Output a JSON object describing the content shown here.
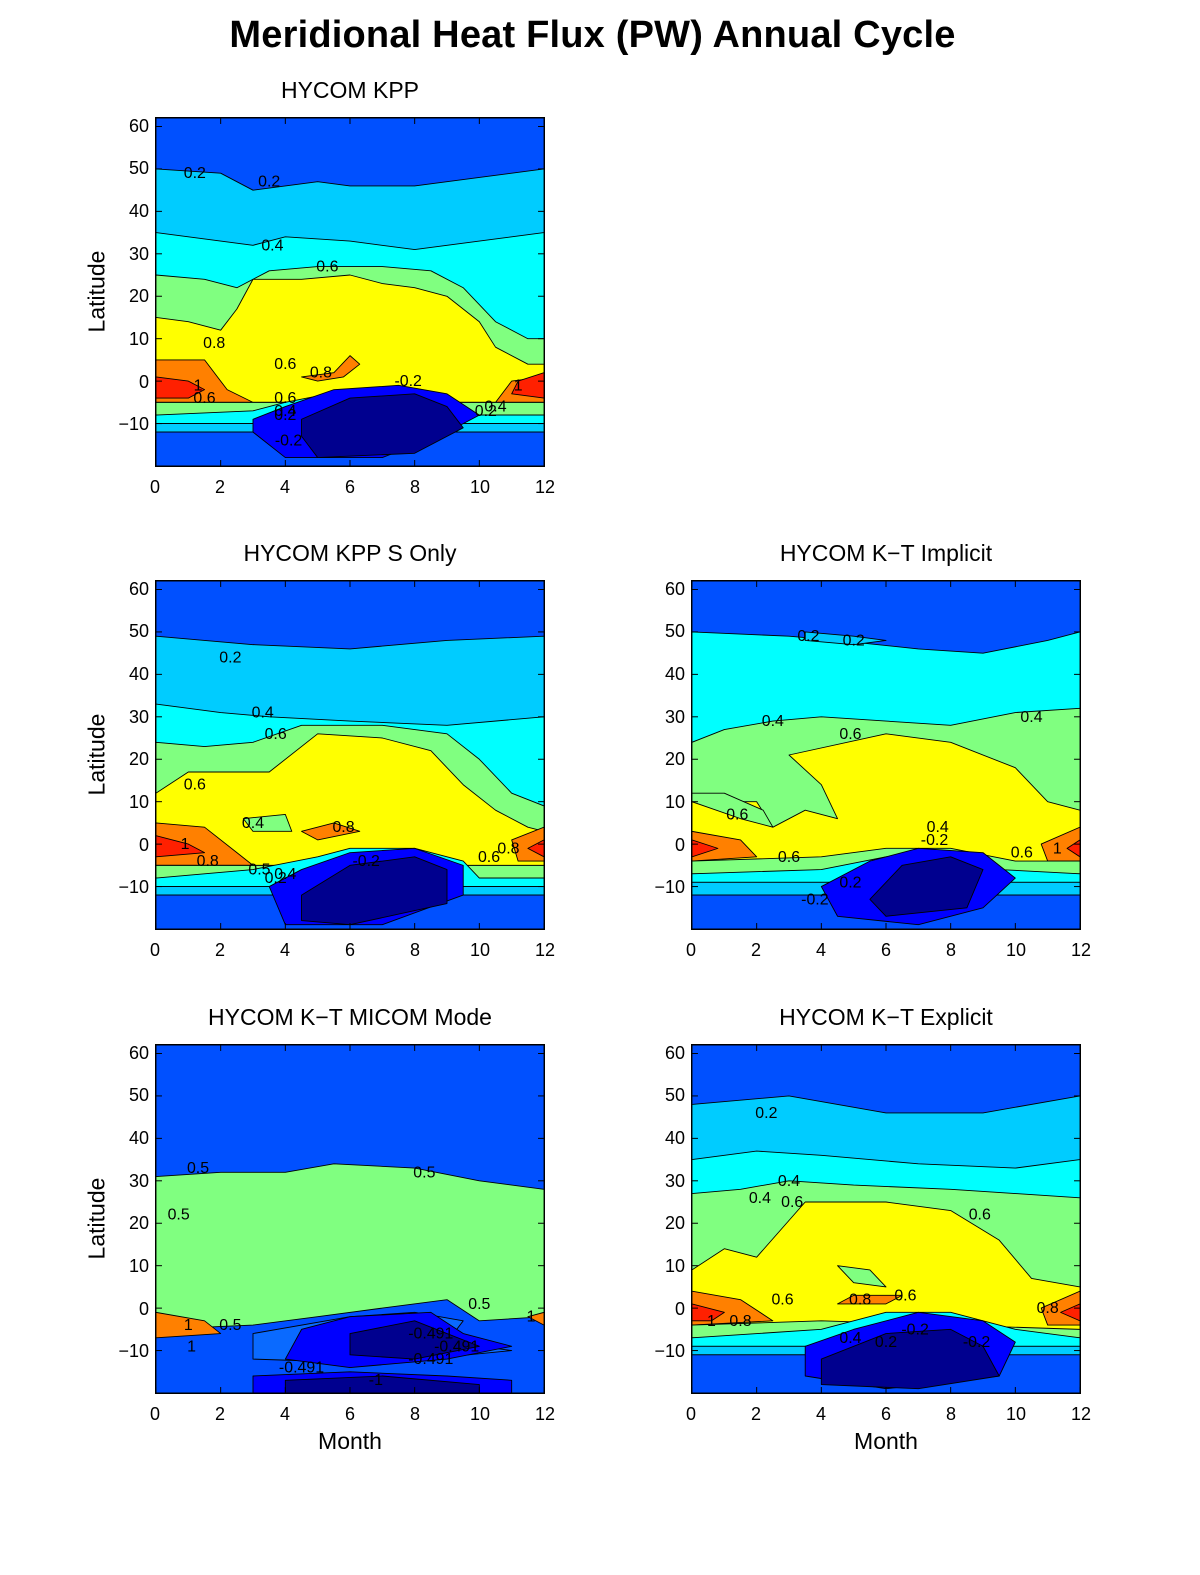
{
  "title": "Meridional Heat Flux (PW) Annual Cycle",
  "chart_data": [
    {
      "type": "contour",
      "title": "HYCOM KPP",
      "xlabel": "",
      "ylabel": "Latitude",
      "xlim": [
        0,
        12
      ],
      "ylim": [
        -20,
        62
      ],
      "xticks": [
        "0",
        "2",
        "4",
        "6",
        "8",
        "10",
        "12"
      ],
      "yticks": [
        "60",
        "50",
        "40",
        "30",
        "20",
        "10",
        "0",
        "−10"
      ],
      "contour_labels": [
        {
          "text": "0.2",
          "x": 1.2,
          "y": 49
        },
        {
          "text": "0.2",
          "x": 3.5,
          "y": 47
        },
        {
          "text": "0.4",
          "x": 3.6,
          "y": 32
        },
        {
          "text": "0.6",
          "x": 5.3,
          "y": 27
        },
        {
          "text": "0.8",
          "x": 1.8,
          "y": 9
        },
        {
          "text": "0.6",
          "x": 4.0,
          "y": 4
        },
        {
          "text": "0.8",
          "x": 5.1,
          "y": 2
        },
        {
          "text": "1",
          "x": 1.3,
          "y": -1
        },
        {
          "text": "0.6",
          "x": 1.5,
          "y": -4
        },
        {
          "text": "0.6",
          "x": 4.0,
          "y": -4
        },
        {
          "text": "0.4",
          "x": 4.0,
          "y": -7
        },
        {
          "text": "0.2",
          "x": 4.0,
          "y": -8
        },
        {
          "text": "-0.2",
          "x": 4.1,
          "y": -14
        },
        {
          "text": "-0.2",
          "x": 7.8,
          "y": 0
        },
        {
          "text": "0.2",
          "x": 10.2,
          "y": -7
        },
        {
          "text": "0.4",
          "x": 10.5,
          "y": -6
        },
        {
          "text": "1",
          "x": 11.2,
          "y": -1
        }
      ]
    },
    {
      "type": "contour",
      "title": "HYCOM KPP S Only",
      "xlabel": "",
      "ylabel": "Latitude",
      "xlim": [
        0,
        12
      ],
      "ylim": [
        -20,
        62
      ],
      "xticks": [
        "0",
        "2",
        "4",
        "6",
        "8",
        "10",
        "12"
      ],
      "yticks": [
        "60",
        "50",
        "40",
        "30",
        "20",
        "10",
        "0",
        "−10"
      ],
      "contour_labels": [
        {
          "text": "0.2",
          "x": 2.3,
          "y": 44
        },
        {
          "text": "0.4",
          "x": 3.3,
          "y": 31
        },
        {
          "text": "0.6",
          "x": 3.7,
          "y": 26
        },
        {
          "text": "0.6",
          "x": 1.2,
          "y": 14
        },
        {
          "text": "0.4",
          "x": 3.0,
          "y": 5
        },
        {
          "text": "0.8",
          "x": 5.8,
          "y": 4
        },
        {
          "text": "1",
          "x": 0.9,
          "y": 0
        },
        {
          "text": "0.8",
          "x": 1.6,
          "y": -4
        },
        {
          "text": "0.5",
          "x": 3.2,
          "y": -6
        },
        {
          "text": "0.2",
          "x": 3.7,
          "y": -8
        },
        {
          "text": "0.4",
          "x": 4.0,
          "y": -7
        },
        {
          "text": "-0.2",
          "x": 6.5,
          "y": -4
        },
        {
          "text": "0.6",
          "x": 10.3,
          "y": -3
        },
        {
          "text": "0.8",
          "x": 10.9,
          "y": -1
        }
      ]
    },
    {
      "type": "contour",
      "title": "HYCOM K−T Implicit",
      "xlabel": "",
      "ylabel": "",
      "xlim": [
        0,
        12
      ],
      "ylim": [
        -20,
        62
      ],
      "xticks": [
        "0",
        "2",
        "4",
        "6",
        "8",
        "10",
        "12"
      ],
      "yticks": [
        "60",
        "50",
        "40",
        "30",
        "20",
        "10",
        "0",
        "−10"
      ],
      "contour_labels": [
        {
          "text": "0.2",
          "x": 3.6,
          "y": 49
        },
        {
          "text": "0.2",
          "x": 5.0,
          "y": 48
        },
        {
          "text": "0.4",
          "x": 2.5,
          "y": 29
        },
        {
          "text": "0.6",
          "x": 4.9,
          "y": 26
        },
        {
          "text": "0.4",
          "x": 10.5,
          "y": 30
        },
        {
          "text": "0.6",
          "x": 1.4,
          "y": 7
        },
        {
          "text": "0.4",
          "x": 7.6,
          "y": 4
        },
        {
          "text": "-0.2",
          "x": 7.5,
          "y": 1
        },
        {
          "text": "0.6",
          "x": 10.2,
          "y": -2
        },
        {
          "text": "1",
          "x": 11.3,
          "y": -1
        },
        {
          "text": "0.6",
          "x": 3.0,
          "y": -3
        },
        {
          "text": "0.2",
          "x": 4.9,
          "y": -9
        },
        {
          "text": "-0.2",
          "x": 3.8,
          "y": -13
        }
      ]
    },
    {
      "type": "contour",
      "title": "HYCOM K−T MICOM Mode",
      "xlabel": "Month",
      "ylabel": "Latitude",
      "xlim": [
        0,
        12
      ],
      "ylim": [
        -20,
        62
      ],
      "xticks": [
        "0",
        "2",
        "4",
        "6",
        "8",
        "10",
        "12"
      ],
      "yticks": [
        "60",
        "50",
        "40",
        "30",
        "20",
        "10",
        "0",
        "−10"
      ],
      "contour_labels": [
        {
          "text": "0.5",
          "x": 1.3,
          "y": 33
        },
        {
          "text": "0.5",
          "x": 0.7,
          "y": 22
        },
        {
          "text": "0.5",
          "x": 8.3,
          "y": 32
        },
        {
          "text": "0.5",
          "x": 10.0,
          "y": 1
        },
        {
          "text": "0.5",
          "x": 2.3,
          "y": -4
        },
        {
          "text": "1",
          "x": 1.0,
          "y": -4
        },
        {
          "text": "1",
          "x": 1.1,
          "y": -9
        },
        {
          "text": "1",
          "x": 11.6,
          "y": -2
        },
        {
          "text": "-0.491",
          "x": 8.5,
          "y": -6
        },
        {
          "text": "-0.491",
          "x": 9.3,
          "y": -9
        },
        {
          "text": "-0.491",
          "x": 8.5,
          "y": -12
        },
        {
          "text": "-0.491",
          "x": 4.5,
          "y": -14
        },
        {
          "text": "-1",
          "x": 6.8,
          "y": -17
        }
      ]
    },
    {
      "type": "contour",
      "title": "HYCOM K−T Explicit",
      "xlabel": "Month",
      "ylabel": "",
      "xlim": [
        0,
        12
      ],
      "ylim": [
        -20,
        62
      ],
      "xticks": [
        "0",
        "2",
        "4",
        "6",
        "8",
        "10",
        "12"
      ],
      "yticks": [
        "60",
        "50",
        "40",
        "30",
        "20",
        "10",
        "0",
        "−10"
      ],
      "contour_labels": [
        {
          "text": "0.2",
          "x": 2.3,
          "y": 46
        },
        {
          "text": "0.4",
          "x": 3.0,
          "y": 30
        },
        {
          "text": "0.4",
          "x": 2.1,
          "y": 26
        },
        {
          "text": "0.6",
          "x": 3.1,
          "y": 25
        },
        {
          "text": "0.6",
          "x": 8.9,
          "y": 22
        },
        {
          "text": "0.6",
          "x": 2.8,
          "y": 2
        },
        {
          "text": "0.8",
          "x": 5.2,
          "y": 2
        },
        {
          "text": "0.6",
          "x": 6.6,
          "y": 3
        },
        {
          "text": "0.8",
          "x": 11.0,
          "y": 0
        },
        {
          "text": "1",
          "x": 0.6,
          "y": -3
        },
        {
          "text": "0.8",
          "x": 1.5,
          "y": -3
        },
        {
          "text": "-0.2",
          "x": 6.9,
          "y": -5
        },
        {
          "text": "0.4",
          "x": 4.9,
          "y": -7
        },
        {
          "text": "0.2",
          "x": 6.0,
          "y": -8
        },
        {
          "text": "-0.2",
          "x": 8.8,
          "y": -8
        }
      ]
    }
  ]
}
